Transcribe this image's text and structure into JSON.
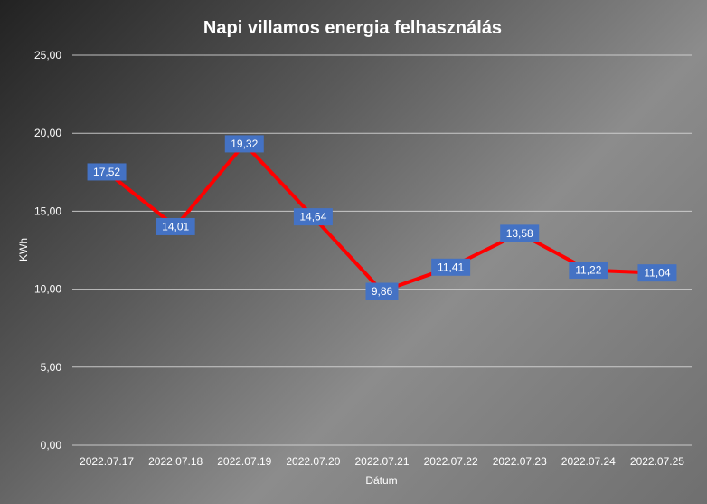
{
  "chart_data": {
    "type": "line",
    "title": "Napi villamos energia felhasználás",
    "xlabel": "Dátum",
    "ylabel": "KWh",
    "categories": [
      "2022.07.17",
      "2022.07.18",
      "2022.07.19",
      "2022.07.20",
      "2022.07.21",
      "2022.07.22",
      "2022.07.23",
      "2022.07.24",
      "2022.07.25"
    ],
    "series": [
      {
        "color": "#ff0000",
        "values": [
          17.52,
          14.01,
          19.32,
          14.64,
          9.86,
          11.41,
          13.58,
          11.22,
          11.04
        ],
        "labels": [
          "17,52",
          "14,01",
          "19,32",
          "14,64",
          "9,86",
          "11,41",
          "13,58",
          "11,22",
          "11,04"
        ]
      }
    ],
    "ylim": [
      0,
      25
    ],
    "yticks": [
      0,
      5,
      10,
      15,
      20,
      25
    ],
    "ytick_labels": [
      "0,00",
      "5,00",
      "10,00",
      "15,00",
      "20,00",
      "25,00"
    ],
    "grid": true,
    "legend": "none",
    "data_label_color": "#4472c4"
  }
}
